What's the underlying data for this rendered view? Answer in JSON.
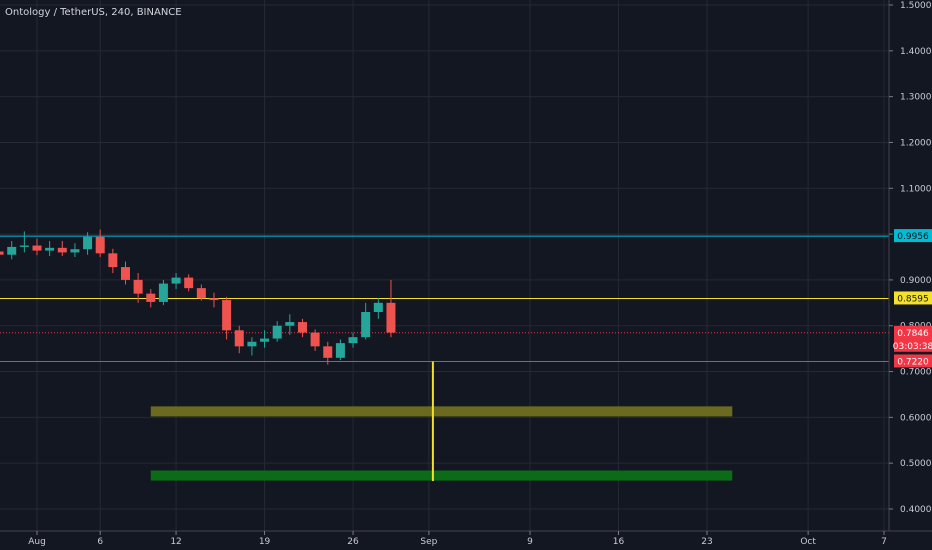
{
  "title": "Ontology / TetherUS, 240, BINANCE",
  "colors": {
    "background": "#131722",
    "grid": "#242936",
    "candle_up": "#26a69a",
    "candle_down": "#ef5350",
    "resistance": "#00bcd4",
    "level_yellow": "#f5e02a",
    "support_red": "#f23645",
    "zone_olive": "#6b6a1f",
    "zone_green": "#0c6b16",
    "vertical_marker": "#f5e02a"
  },
  "chart_data": {
    "type": "candlestick",
    "title": "Ontology / TetherUS, 240, BINANCE",
    "y_axis": {
      "ylim": [
        0.355,
        1.51
      ],
      "ticks": [
        "0.4000",
        "0.5000",
        "0.6000",
        "0.7000",
        "0.8000",
        "0.9000",
        "1.0000",
        "1.1000",
        "1.2000",
        "1.3000",
        "1.4000",
        "1.5000"
      ],
      "tick_values": [
        0.4,
        0.5,
        0.6,
        0.7,
        0.8,
        0.9,
        1.0,
        1.1,
        1.2,
        1.3,
        1.4,
        1.5
      ]
    },
    "x_axis": {
      "ticks": [
        "Aug",
        "6",
        "12",
        "19",
        "26",
        "Sep",
        "9",
        "16",
        "23",
        "Oct",
        "7"
      ],
      "tick_dates": [
        "2019-08-01",
        "2019-08-06",
        "2019-08-12",
        "2019-08-19",
        "2019-08-26",
        "2019-09-01",
        "2019-09-09",
        "2019-09-16",
        "2019-09-23",
        "2019-10-01",
        "2019-10-07"
      ]
    },
    "grid": true,
    "horizontal_lines": [
      {
        "name": "resistance",
        "value": 0.9956,
        "label": "0.9956",
        "color": "#00bcd4"
      },
      {
        "name": "level",
        "value": 0.8595,
        "label": "0.8595",
        "color": "#f5e02a"
      },
      {
        "name": "support",
        "value": 0.722,
        "label": "0.7220",
        "color": "#f23645"
      }
    ],
    "last_price": {
      "value": 0.7846,
      "label": "0.7846",
      "countdown": "03:03:38",
      "color": "#f23645"
    },
    "zones": [
      {
        "name": "olive-zone",
        "start": "2019-08-10",
        "end": "2019-09-25",
        "top": 0.624,
        "bottom": 0.602,
        "color": "#6b6a1f"
      },
      {
        "name": "green-zone",
        "start": "2019-08-10",
        "end": "2019-09-25",
        "top": 0.484,
        "bottom": 0.462,
        "color": "#0c6b16"
      }
    ],
    "vertical_marker": {
      "date": "2019-09-01",
      "from": 0.722,
      "to": 0.461,
      "color": "#f5e02a"
    },
    "candles": [
      {
        "date": "2019-07-29",
        "open": 0.962,
        "high": 0.984,
        "low": 0.942,
        "close": 0.955
      },
      {
        "date": "2019-07-30",
        "open": 0.955,
        "high": 0.985,
        "low": 0.945,
        "close": 0.972
      },
      {
        "date": "2019-07-31",
        "open": 0.972,
        "high": 1.006,
        "low": 0.96,
        "close": 0.975
      },
      {
        "date": "2019-08-01",
        "open": 0.975,
        "high": 0.99,
        "low": 0.954,
        "close": 0.964
      },
      {
        "date": "2019-08-02",
        "open": 0.964,
        "high": 0.985,
        "low": 0.952,
        "close": 0.97
      },
      {
        "date": "2019-08-03",
        "open": 0.97,
        "high": 0.985,
        "low": 0.952,
        "close": 0.96
      },
      {
        "date": "2019-08-04",
        "open": 0.96,
        "high": 0.98,
        "low": 0.95,
        "close": 0.967
      },
      {
        "date": "2019-08-05",
        "open": 0.967,
        "high": 1.004,
        "low": 0.955,
        "close": 0.994
      },
      {
        "date": "2019-08-06",
        "open": 0.994,
        "high": 1.01,
        "low": 0.95,
        "close": 0.958
      },
      {
        "date": "2019-08-07",
        "open": 0.958,
        "high": 0.968,
        "low": 0.915,
        "close": 0.928
      },
      {
        "date": "2019-08-08",
        "open": 0.928,
        "high": 0.94,
        "low": 0.89,
        "close": 0.9
      },
      {
        "date": "2019-08-09",
        "open": 0.9,
        "high": 0.915,
        "low": 0.85,
        "close": 0.87
      },
      {
        "date": "2019-08-10",
        "open": 0.87,
        "high": 0.88,
        "low": 0.84,
        "close": 0.852
      },
      {
        "date": "2019-08-11",
        "open": 0.852,
        "high": 0.9,
        "low": 0.845,
        "close": 0.892
      },
      {
        "date": "2019-08-12",
        "open": 0.892,
        "high": 0.915,
        "low": 0.88,
        "close": 0.905
      },
      {
        "date": "2019-08-13",
        "open": 0.905,
        "high": 0.912,
        "low": 0.875,
        "close": 0.882
      },
      {
        "date": "2019-08-14",
        "open": 0.882,
        "high": 0.89,
        "low": 0.855,
        "close": 0.86
      },
      {
        "date": "2019-08-15",
        "open": 0.86,
        "high": 0.872,
        "low": 0.84,
        "close": 0.856
      },
      {
        "date": "2019-08-16",
        "open": 0.856,
        "high": 0.863,
        "low": 0.77,
        "close": 0.79
      },
      {
        "date": "2019-08-17",
        "open": 0.79,
        "high": 0.8,
        "low": 0.74,
        "close": 0.755
      },
      {
        "date": "2019-08-18",
        "open": 0.755,
        "high": 0.775,
        "low": 0.735,
        "close": 0.765
      },
      {
        "date": "2019-08-19",
        "open": 0.765,
        "high": 0.79,
        "low": 0.752,
        "close": 0.772
      },
      {
        "date": "2019-08-20",
        "open": 0.772,
        "high": 0.81,
        "low": 0.765,
        "close": 0.8
      },
      {
        "date": "2019-08-21",
        "open": 0.8,
        "high": 0.825,
        "low": 0.78,
        "close": 0.808
      },
      {
        "date": "2019-08-22",
        "open": 0.808,
        "high": 0.815,
        "low": 0.775,
        "close": 0.785
      },
      {
        "date": "2019-08-23",
        "open": 0.785,
        "high": 0.792,
        "low": 0.745,
        "close": 0.755
      },
      {
        "date": "2019-08-24",
        "open": 0.755,
        "high": 0.765,
        "low": 0.715,
        "close": 0.73
      },
      {
        "date": "2019-08-25",
        "open": 0.73,
        "high": 0.77,
        "low": 0.725,
        "close": 0.762
      },
      {
        "date": "2019-08-26",
        "open": 0.762,
        "high": 0.785,
        "low": 0.752,
        "close": 0.775
      },
      {
        "date": "2019-08-27",
        "open": 0.775,
        "high": 0.85,
        "low": 0.77,
        "close": 0.83
      },
      {
        "date": "2019-08-28",
        "open": 0.83,
        "high": 0.86,
        "low": 0.815,
        "close": 0.85
      },
      {
        "date": "2019-08-29",
        "open": 0.85,
        "high": 0.9,
        "low": 0.775,
        "close": 0.785
      }
    ]
  }
}
